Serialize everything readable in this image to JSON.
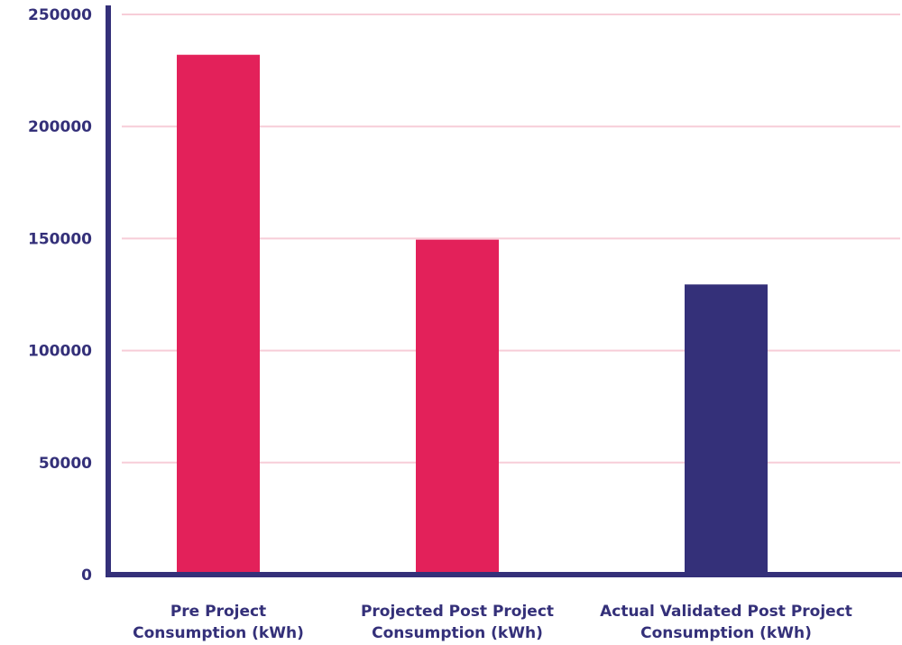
{
  "chart_data": {
    "type": "bar",
    "categories": [
      [
        "Pre Project",
        "Consumption (kWh)"
      ],
      [
        "Projected Post Project",
        "Consumption (kWh)"
      ],
      [
        "Actual Validated Post Project",
        "Consumption (kWh)"
      ]
    ],
    "values": [
      232000,
      149500,
      129500
    ],
    "bar_colors": [
      "#e3215a",
      "#e3215a",
      "#343079"
    ],
    "ylim": [
      0,
      250000
    ],
    "yticks": [
      0,
      50000,
      100000,
      150000,
      200000,
      250000
    ],
    "ytick_labels": [
      "0",
      "50000",
      "100000",
      "150000",
      "200000",
      "250000"
    ],
    "grid": true,
    "grid_color": "#f7cdd8",
    "axis_color": "#343079",
    "title": "",
    "xlabel": "",
    "ylabel": ""
  }
}
